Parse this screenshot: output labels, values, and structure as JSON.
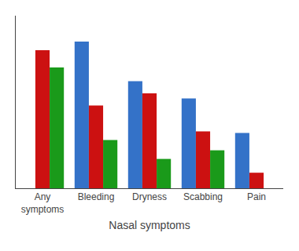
{
  "chart_data": {
    "type": "bar",
    "xlabel": "Nasal symptoms",
    "categories": [
      "Any\nsymptoms",
      "Bleeding",
      "Dryness",
      "Scabbing",
      "Pain"
    ],
    "series": [
      {
        "color": "#3472c8",
        "values": [
          0,
          85,
          62,
          52,
          32
        ]
      },
      {
        "color": "#cc1111",
        "values": [
          80,
          48,
          55,
          33,
          9
        ]
      },
      {
        "color": "#1a9a1a",
        "values": [
          70,
          28,
          17,
          22,
          0
        ]
      }
    ],
    "ylim": [
      0,
      100
    ],
    "yticks": [],
    "tick_labels": "x",
    "grid": false
  }
}
